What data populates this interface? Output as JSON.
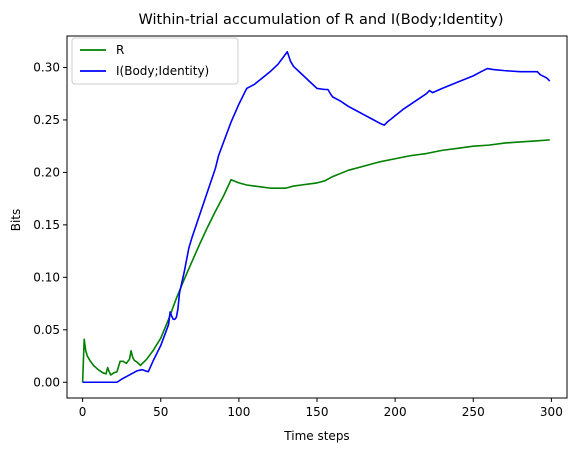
{
  "chart_data": {
    "type": "line",
    "title": "Within-trial accumulation of R and I(Body;Identity)",
    "xlabel": "Time steps",
    "ylabel": "Bits",
    "xlim": [
      -10,
      310
    ],
    "ylim": [
      -0.015,
      0.33
    ],
    "xticks": [
      0,
      50,
      100,
      150,
      200,
      250,
      300
    ],
    "yticks": [
      0.0,
      0.05,
      0.1,
      0.15,
      0.2,
      0.25,
      0.3
    ],
    "grid": false,
    "legend_position": "top-left",
    "series": [
      {
        "name": "R",
        "color": "#008000",
        "points": [
          [
            0,
            0.0
          ],
          [
            1,
            0.041
          ],
          [
            2,
            0.03
          ],
          [
            3,
            0.025
          ],
          [
            5,
            0.02
          ],
          [
            7,
            0.016
          ],
          [
            10,
            0.012
          ],
          [
            13,
            0.009
          ],
          [
            15,
            0.008
          ],
          [
            16,
            0.014
          ],
          [
            17,
            0.01
          ],
          [
            18,
            0.007
          ],
          [
            20,
            0.009
          ],
          [
            22,
            0.01
          ],
          [
            23,
            0.015
          ],
          [
            24,
            0.02
          ],
          [
            26,
            0.02
          ],
          [
            28,
            0.018
          ],
          [
            30,
            0.022
          ],
          [
            31,
            0.03
          ],
          [
            32,
            0.024
          ],
          [
            33,
            0.021
          ],
          [
            35,
            0.019
          ],
          [
            37,
            0.016
          ],
          [
            39,
            0.019
          ],
          [
            41,
            0.022
          ],
          [
            45,
            0.03
          ],
          [
            50,
            0.042
          ],
          [
            55,
            0.06
          ],
          [
            60,
            0.08
          ],
          [
            65,
            0.098
          ],
          [
            70,
            0.115
          ],
          [
            75,
            0.132
          ],
          [
            80,
            0.148
          ],
          [
            85,
            0.163
          ],
          [
            90,
            0.177
          ],
          [
            95,
            0.193
          ],
          [
            100,
            0.19
          ],
          [
            105,
            0.188
          ],
          [
            110,
            0.187
          ],
          [
            115,
            0.186
          ],
          [
            120,
            0.185
          ],
          [
            125,
            0.185
          ],
          [
            130,
            0.185
          ],
          [
            135,
            0.187
          ],
          [
            140,
            0.188
          ],
          [
            145,
            0.189
          ],
          [
            150,
            0.19
          ],
          [
            155,
            0.192
          ],
          [
            160,
            0.196
          ],
          [
            170,
            0.202
          ],
          [
            180,
            0.206
          ],
          [
            190,
            0.21
          ],
          [
            200,
            0.213
          ],
          [
            210,
            0.216
          ],
          [
            220,
            0.218
          ],
          [
            230,
            0.221
          ],
          [
            240,
            0.223
          ],
          [
            250,
            0.225
          ],
          [
            260,
            0.226
          ],
          [
            270,
            0.228
          ],
          [
            280,
            0.229
          ],
          [
            290,
            0.23
          ],
          [
            299,
            0.231
          ]
        ]
      },
      {
        "name": "I(Body;Identity)",
        "color": "#0000ff",
        "points": [
          [
            0,
            0.0
          ],
          [
            21,
            0.0
          ],
          [
            22,
            0.0
          ],
          [
            25,
            0.003
          ],
          [
            30,
            0.007
          ],
          [
            35,
            0.011
          ],
          [
            38,
            0.012
          ],
          [
            40,
            0.011
          ],
          [
            42,
            0.01
          ],
          [
            45,
            0.02
          ],
          [
            50,
            0.035
          ],
          [
            55,
            0.055
          ],
          [
            56,
            0.067
          ],
          [
            57,
            0.063
          ],
          [
            58,
            0.06
          ],
          [
            59,
            0.06
          ],
          [
            60,
            0.062
          ],
          [
            61,
            0.07
          ],
          [
            62,
            0.085
          ],
          [
            65,
            0.105
          ],
          [
            68,
            0.128
          ],
          [
            70,
            0.138
          ],
          [
            75,
            0.16
          ],
          [
            80,
            0.182
          ],
          [
            85,
            0.204
          ],
          [
            87,
            0.216
          ],
          [
            90,
            0.228
          ],
          [
            95,
            0.248
          ],
          [
            100,
            0.265
          ],
          [
            105,
            0.28
          ],
          [
            110,
            0.284
          ],
          [
            115,
            0.29
          ],
          [
            120,
            0.296
          ],
          [
            125,
            0.303
          ],
          [
            130,
            0.313
          ],
          [
            131,
            0.315
          ],
          [
            133,
            0.306
          ],
          [
            135,
            0.301
          ],
          [
            140,
            0.294
          ],
          [
            145,
            0.287
          ],
          [
            150,
            0.28
          ],
          [
            155,
            0.279
          ],
          [
            157,
            0.279
          ],
          [
            159,
            0.274
          ],
          [
            160,
            0.272
          ],
          [
            165,
            0.268
          ],
          [
            170,
            0.263
          ],
          [
            175,
            0.259
          ],
          [
            180,
            0.255
          ],
          [
            185,
            0.251
          ],
          [
            190,
            0.247
          ],
          [
            193,
            0.245
          ],
          [
            195,
            0.248
          ],
          [
            200,
            0.254
          ],
          [
            205,
            0.26
          ],
          [
            210,
            0.265
          ],
          [
            215,
            0.27
          ],
          [
            220,
            0.275
          ],
          [
            222,
            0.278
          ],
          [
            224,
            0.276
          ],
          [
            230,
            0.28
          ],
          [
            240,
            0.286
          ],
          [
            250,
            0.292
          ],
          [
            255,
            0.296
          ],
          [
            259,
            0.299
          ],
          [
            263,
            0.298
          ],
          [
            270,
            0.297
          ],
          [
            280,
            0.296
          ],
          [
            288,
            0.296
          ],
          [
            291,
            0.296
          ],
          [
            293,
            0.293
          ],
          [
            297,
            0.29
          ],
          [
            299,
            0.287
          ]
        ]
      }
    ]
  }
}
